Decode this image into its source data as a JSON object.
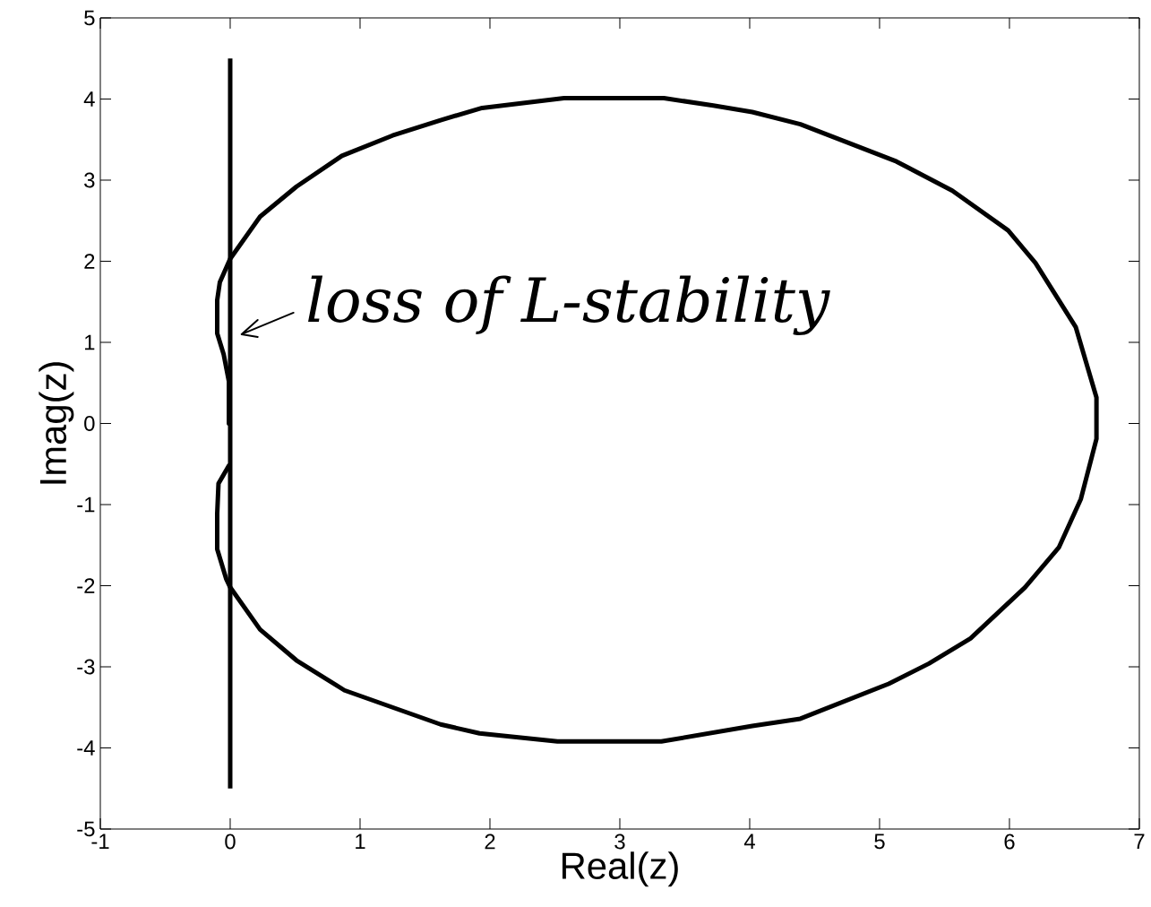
{
  "chart_data": {
    "type": "line",
    "xlabel": "Real(z)",
    "ylabel": "Imag(z)",
    "xlim": [
      -1,
      7
    ],
    "ylim": [
      -5,
      5
    ],
    "xticks": [
      -1,
      0,
      1,
      2,
      3,
      4,
      5,
      6,
      7
    ],
    "yticks": [
      -5,
      -4,
      -3,
      -2,
      -1,
      0,
      1,
      2,
      3,
      4,
      5
    ],
    "series": [
      {
        "color": "#000000",
        "x": [
          -0.01,
          -0.01,
          -0.05,
          -0.1,
          -0.1,
          -0.08,
          0.0,
          0.23,
          0.51,
          0.86,
          1.25,
          1.62,
          1.94,
          2.57,
          3.34,
          3.72,
          4.02,
          4.39,
          5.13,
          5.56,
          5.99,
          6.2,
          6.51,
          6.67,
          6.67,
          6.55,
          6.38,
          6.12,
          5.7,
          5.38,
          5.07,
          4.39,
          4.02,
          3.32,
          2.52,
          1.92,
          1.62,
          0.88,
          0.51,
          0.23,
          0.0,
          -0.03,
          -0.1,
          -0.1,
          -0.09,
          -0.01
        ],
        "values": [
          0.0,
          0.52,
          0.85,
          1.11,
          1.52,
          1.74,
          2.03,
          2.55,
          2.92,
          3.3,
          3.55,
          3.74,
          3.89,
          4.01,
          4.01,
          3.92,
          3.84,
          3.69,
          3.23,
          2.87,
          2.38,
          1.98,
          1.19,
          0.32,
          -0.19,
          -0.93,
          -1.53,
          -2.02,
          -2.65,
          -2.96,
          -3.21,
          -3.64,
          -3.73,
          -3.92,
          -3.92,
          -3.82,
          -3.71,
          -3.29,
          -2.92,
          -2.54,
          -2.02,
          -1.92,
          -1.55,
          -1.11,
          -0.74,
          -0.52
        ]
      }
    ],
    "ref_lines": [
      {
        "axis": "x",
        "value": 0,
        "color": "#000000"
      }
    ],
    "annotations": [
      {
        "text": "loss of L-stability",
        "x": 0,
        "y": 1.1
      }
    ]
  }
}
